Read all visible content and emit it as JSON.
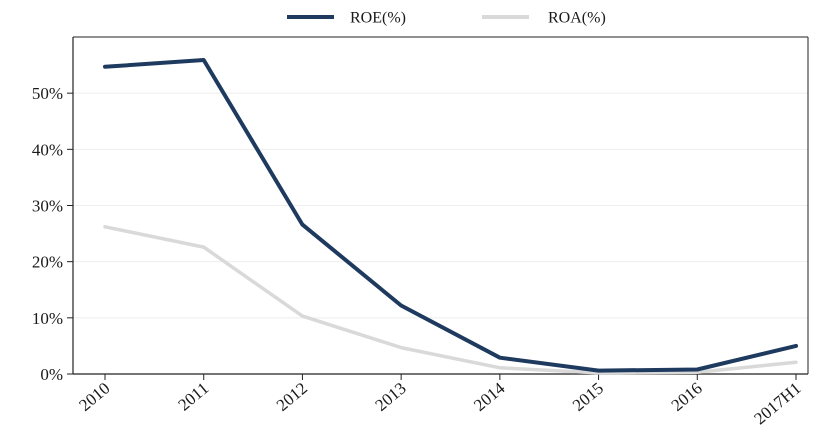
{
  "chart_data": {
    "type": "line",
    "categories": [
      "2010",
      "2011",
      "2012",
      "2013",
      "2014",
      "2015",
      "2016",
      "2017H1"
    ],
    "series": [
      {
        "name": "ROE(%)",
        "color": "#1f3a5f",
        "values": [
          54.7,
          55.9,
          26.6,
          12.2,
          2.9,
          0.6,
          0.8,
          5.0
        ]
      },
      {
        "name": "ROA(%)",
        "color": "#d9d9d9",
        "values": [
          26.2,
          22.6,
          10.3,
          4.7,
          1.1,
          0.2,
          0.3,
          2.1
        ]
      }
    ],
    "y_ticks": [
      "0%",
      "10%",
      "20%",
      "30%",
      "40%",
      "50%"
    ],
    "ylim": [
      0,
      60
    ],
    "grid": "horizontal",
    "legend_position": "top-center",
    "title": "",
    "xlabel": "",
    "ylabel": ""
  }
}
